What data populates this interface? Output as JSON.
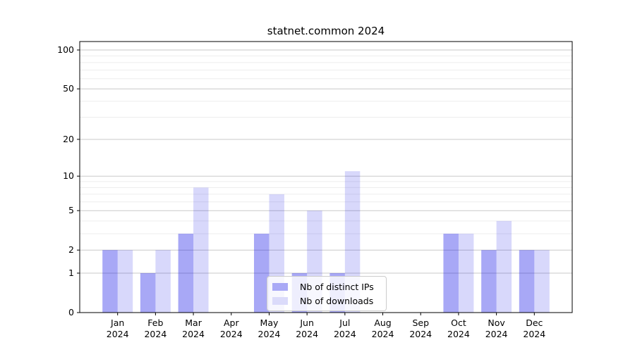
{
  "title": "statnet.common 2024",
  "chart_data": {
    "type": "bar",
    "title": "statnet.common 2024",
    "categories": [
      "Jan",
      "Feb",
      "Mar",
      "Apr",
      "May",
      "Jun",
      "Jul",
      "Aug",
      "Sep",
      "Oct",
      "Nov",
      "Dec"
    ],
    "x_year_label": "2024",
    "series": [
      {
        "name": "Nb of distinct IPs",
        "values": [
          2,
          1,
          3,
          0,
          3,
          1,
          1,
          0,
          0,
          3,
          2,
          2
        ],
        "bar_color": "rgba(15,15,230,0.36)",
        "legend_color": "#a9a9f6"
      },
      {
        "name": "Nb of downloads",
        "values": [
          2,
          2,
          8,
          0,
          7,
          5,
          11,
          0,
          0,
          3,
          4,
          2
        ],
        "bar_color": "rgba(15,15,230,0.16)",
        "legend_color": "#dbdbfa"
      }
    ],
    "y_scale": "log1p",
    "y_tick_values": [
      0,
      1,
      2,
      5,
      10,
      20,
      50,
      100
    ],
    "y_minor_grid_values": [
      3,
      4,
      6,
      7,
      8,
      9,
      30,
      40,
      60,
      70,
      80,
      90
    ],
    "ylim": [
      0,
      116
    ],
    "xlim": [
      -1,
      12
    ],
    "grid": true,
    "legend_position": "lower center",
    "colors": {
      "major_grid": "#c9c9c9",
      "minor_grid": "#ededed",
      "spine": "#000000",
      "text": "#000000"
    }
  }
}
